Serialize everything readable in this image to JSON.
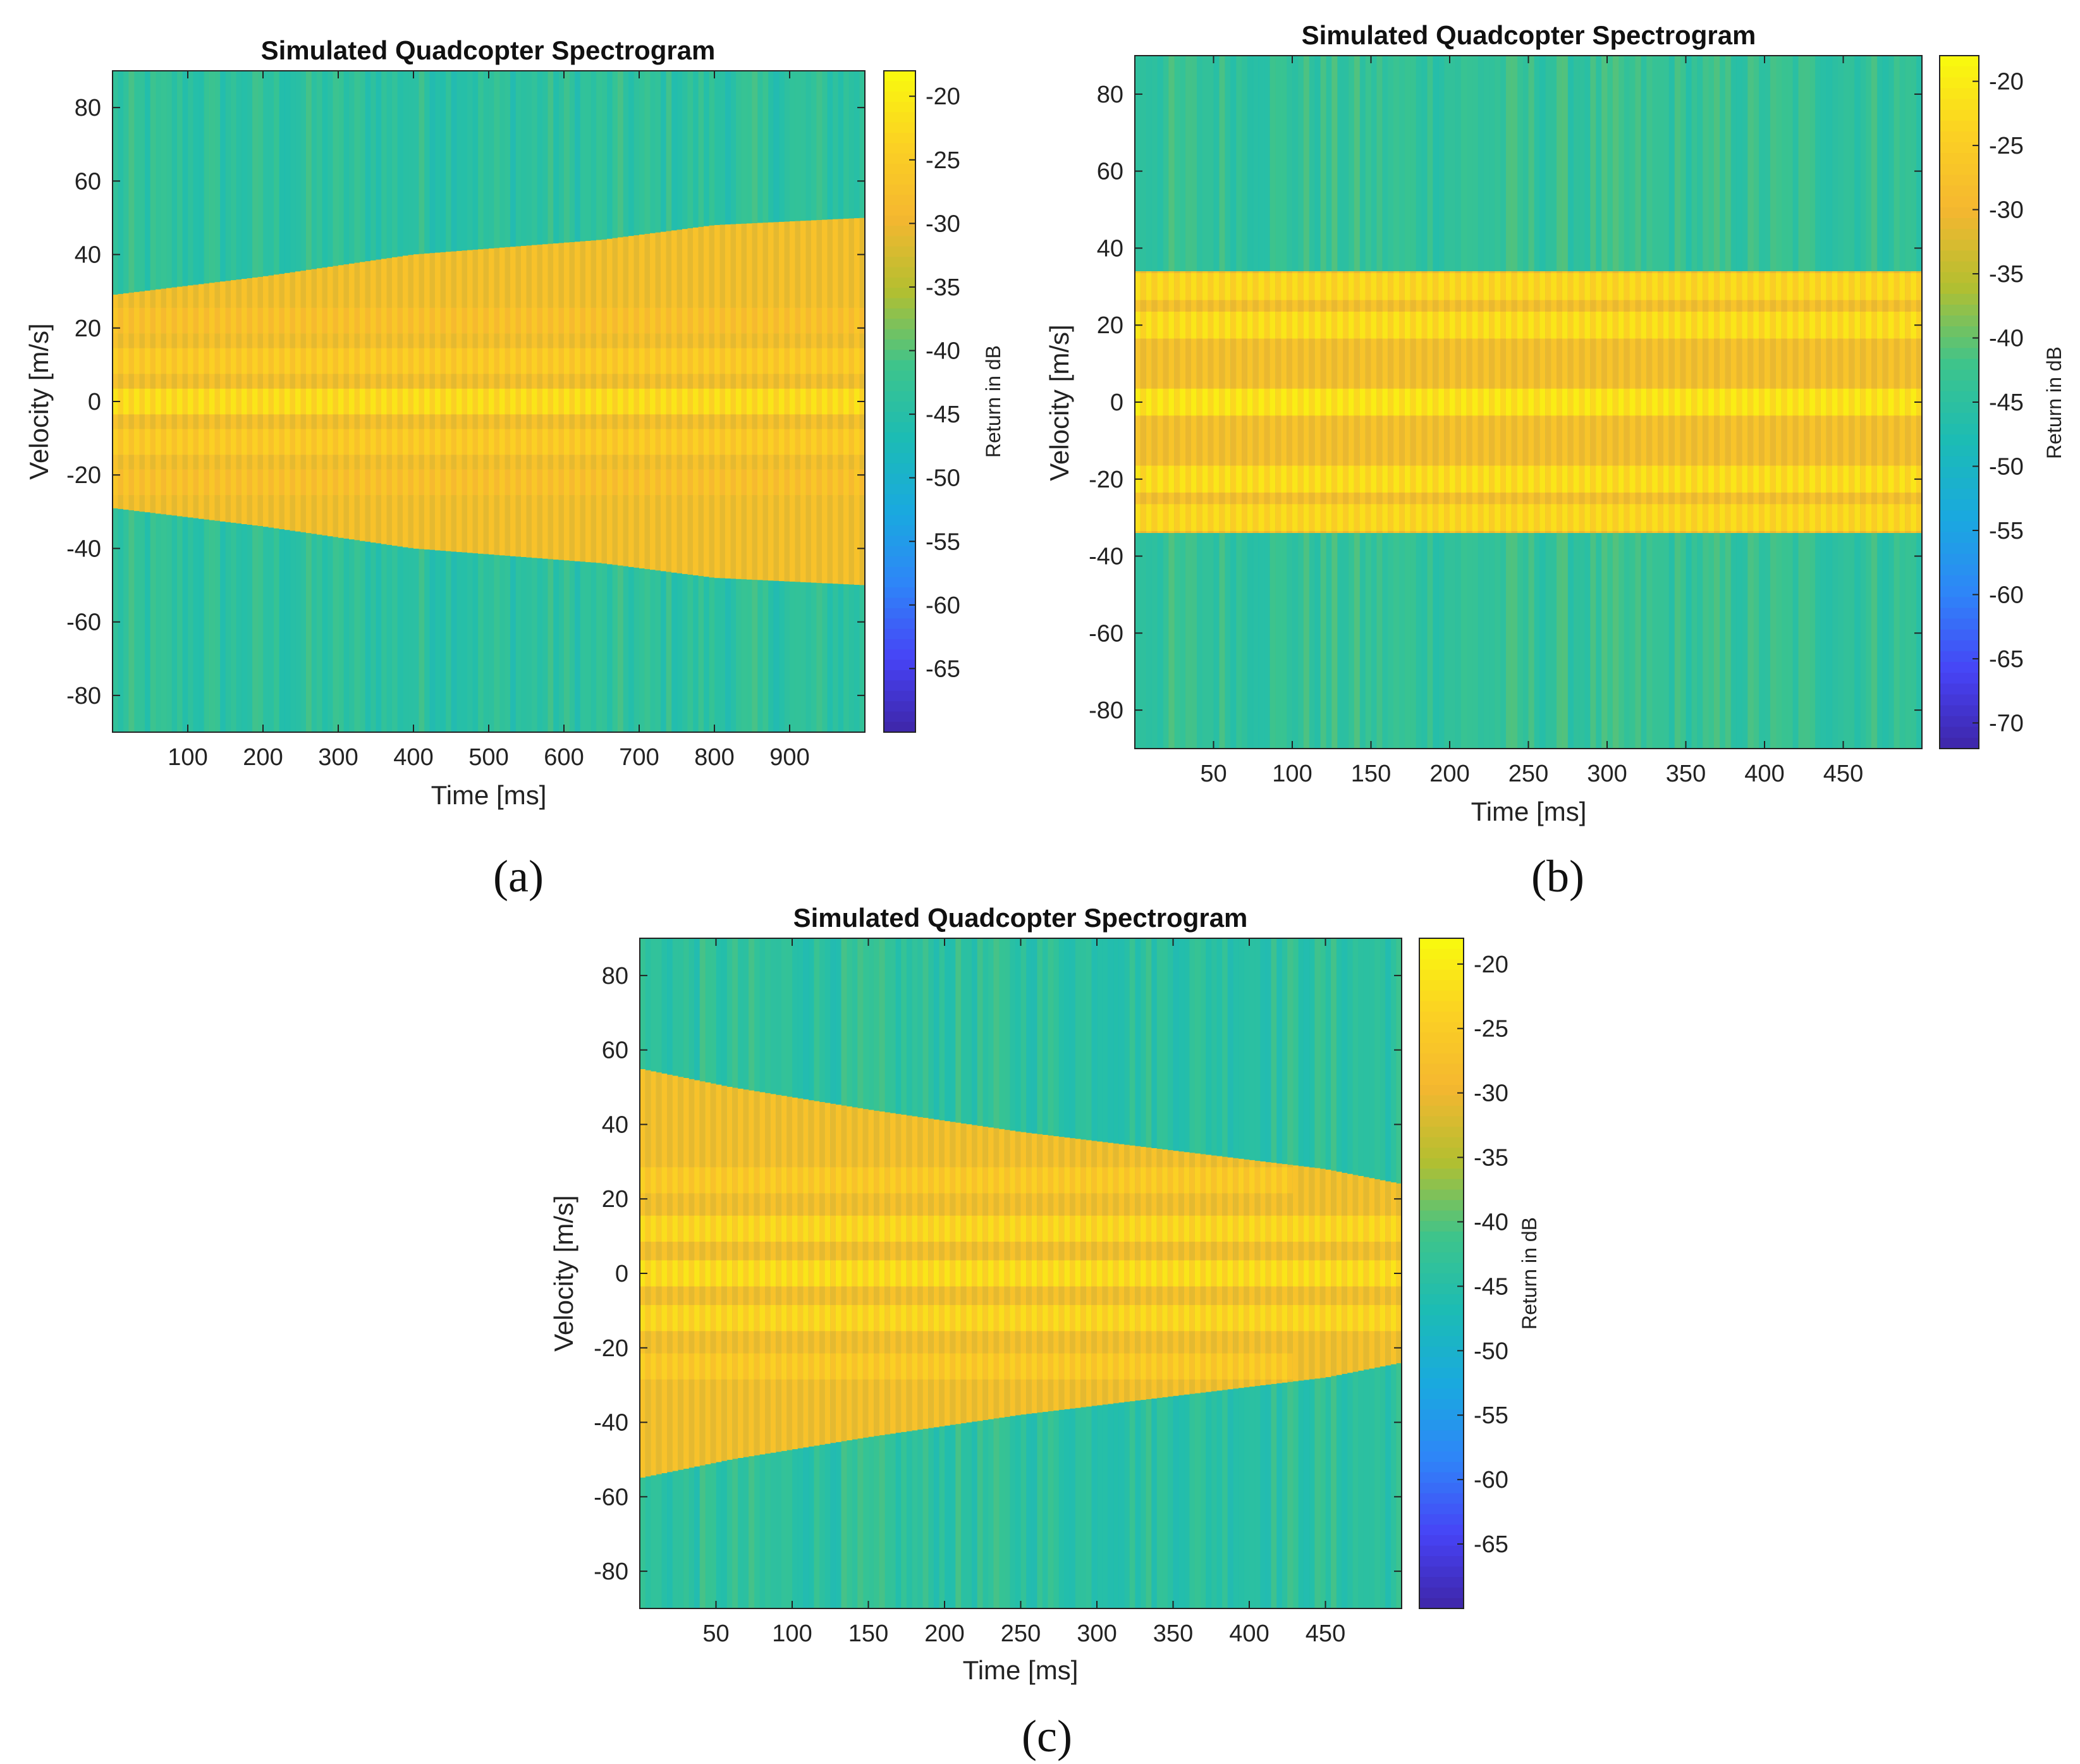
{
  "colormap": [
    "#3e26a8",
    "#4743f6",
    "#2f85f8",
    "#1aa9df",
    "#1cbcb4",
    "#3ec48b",
    "#b3bf30",
    "#f5b730",
    "#fbd123",
    "#f9fb0e"
  ],
  "chart_data": [
    {
      "type": "heatmap",
      "panel": "(a)",
      "title": "Simulated Quadcopter Spectrogram",
      "xlabel": "Time [ms]",
      "ylabel": "Velocity [m/s]",
      "colorbar_label": "Return in dB",
      "xlim": [
        0,
        1000
      ],
      "ylim": [
        -90,
        90
      ],
      "xticks": [
        100,
        200,
        300,
        400,
        500,
        600,
        700,
        800,
        900
      ],
      "yticks": [
        80,
        60,
        40,
        20,
        0,
        -20,
        -40,
        -60,
        -80
      ],
      "clim": [
        -70,
        -18
      ],
      "cticks": [
        -20,
        -25,
        -30,
        -35,
        -40,
        -45,
        -50,
        -55,
        -60,
        -65
      ],
      "background_db": -44,
      "band_edge_ms": [
        0,
        200,
        400,
        650,
        800,
        1000
      ],
      "band_edge_halfwidth": [
        29,
        34,
        40,
        44,
        48,
        50
      ],
      "blade_bands": [
        {
          "v": 0,
          "db": -21
        },
        {
          "v": 11,
          "db": -24
        },
        {
          "v": -11,
          "db": -24
        },
        {
          "v": 22,
          "db": -26
        },
        {
          "v": -22,
          "db": -26
        }
      ]
    },
    {
      "type": "heatmap",
      "panel": "(b)",
      "title": "Simulated Quadcopter Spectrogram",
      "xlabel": "Time [ms]",
      "ylabel": "Velocity [m/s]",
      "colorbar_label": "Return in dB",
      "xlim": [
        0,
        500
      ],
      "ylim": [
        -90,
        90
      ],
      "xticks": [
        50,
        100,
        150,
        200,
        250,
        300,
        350,
        400,
        450
      ],
      "yticks": [
        80,
        60,
        40,
        20,
        0,
        -20,
        -40,
        -60,
        -80
      ],
      "clim": [
        -72,
        -18
      ],
      "cticks": [
        -20,
        -25,
        -30,
        -35,
        -40,
        -45,
        -50,
        -55,
        -60,
        -65,
        -70
      ],
      "background_db": -44,
      "band_edge_ms": [
        0,
        500
      ],
      "band_edge_halfwidth": [
        34,
        34
      ],
      "blade_bands": [
        {
          "v": 0,
          "db": -20
        },
        {
          "v": 20,
          "db": -21
        },
        {
          "v": -20,
          "db": -21
        },
        {
          "v": 30,
          "db": -22
        },
        {
          "v": -30,
          "db": -22
        }
      ]
    },
    {
      "type": "heatmap",
      "panel": "(c)",
      "title": "Simulated Quadcopter Spectrogram",
      "xlabel": "Time [ms]",
      "ylabel": "Velocity [m/s]",
      "colorbar_label": "Return in dB",
      "xlim": [
        0,
        500
      ],
      "ylim": [
        -90,
        90
      ],
      "xticks": [
        50,
        100,
        150,
        200,
        250,
        300,
        350,
        400,
        450
      ],
      "yticks": [
        80,
        60,
        40,
        20,
        0,
        -20,
        -40,
        -60,
        -80
      ],
      "clim": [
        -70,
        -18
      ],
      "cticks": [
        -20,
        -25,
        -30,
        -35,
        -40,
        -45,
        -50,
        -55,
        -60,
        -65
      ],
      "background_db": -44,
      "band_edge_ms": [
        0,
        60,
        150,
        250,
        350,
        450,
        500
      ],
      "band_edge_halfwidth": [
        55,
        50,
        44,
        38,
        33,
        28,
        24
      ],
      "blade_bands": [
        {
          "v": 0,
          "db": -21
        },
        {
          "v": 12,
          "db": -22
        },
        {
          "v": -12,
          "db": -22
        },
        {
          "v": 25,
          "db": -24
        },
        {
          "v": -25,
          "db": -24
        }
      ]
    }
  ]
}
